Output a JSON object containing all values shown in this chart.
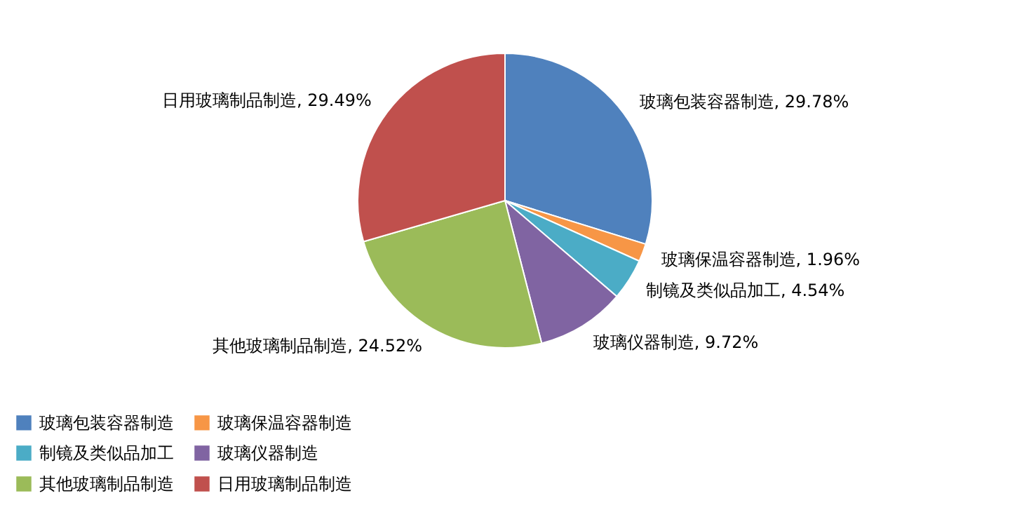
{
  "chart_data": {
    "type": "pie",
    "categories": [
      "玻璃包装容器制造",
      "玻璃保温容器制造",
      "制镜及类似品加工",
      "玻璃仪器制造",
      "其他玻璃制品制造",
      "日用玻璃制品制造"
    ],
    "values": [
      29.78,
      1.96,
      4.54,
      9.72,
      24.52,
      29.49
    ],
    "colors": [
      "#4f81bd",
      "#f79646",
      "#4bacc6",
      "#8064a2",
      "#9bbb59",
      "#c0504d"
    ],
    "value_labels": [
      "玻璃包装容器制造, 29.78%",
      "玻璃保温容器制造, 1.96%",
      "制镜及类似品加工, 4.54%",
      "玻璃仪器制造, 9.72%",
      "其他玻璃制品制造, 24.52%",
      "日用玻璃制品制造, 29.49%"
    ],
    "legend": "bottom"
  }
}
